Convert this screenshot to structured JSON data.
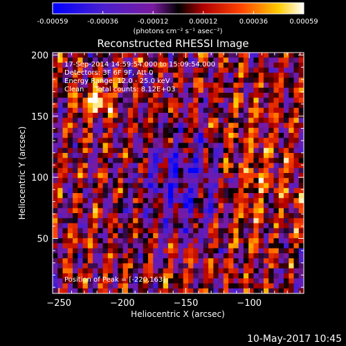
{
  "colorbar": {
    "tick_labels": [
      "-0.00059",
      "-0.00036",
      "-0.00012",
      "0.00012",
      "0.00036",
      "0.00059"
    ],
    "unit_label": "(photons cm⁻² s⁻¹ asec⁻²)",
    "range": [
      -0.00059,
      0.00059
    ]
  },
  "chart_data": {
    "type": "heatmap",
    "title": "Reconstructed RHESSI Image",
    "xlabel": "Heliocentric X (arcsec)",
    "ylabel": "Heliocentric Y (arcsec)",
    "xlim": [
      -255,
      -57
    ],
    "ylim": [
      5,
      202
    ],
    "x_ticks": [
      -250,
      -200,
      -150,
      -100
    ],
    "y_ticks": [
      50,
      100,
      150,
      200
    ],
    "value_range": [
      -0.00059,
      0.00059
    ],
    "peak": [
      -220,
      163
    ],
    "annotations": [
      "17-Sep-2014 14:59:54.000 to 15:09:54.000",
      "Detectors: 3F 6F 9F, Att 0",
      "Energy Range: 12.0 - 25.0 keV",
      "Clean     Total counts: 8.12E+03"
    ],
    "peak_label": "Position of Peak = [-220,163]"
  },
  "footer": {
    "date": "10-May-2017 10:45"
  }
}
